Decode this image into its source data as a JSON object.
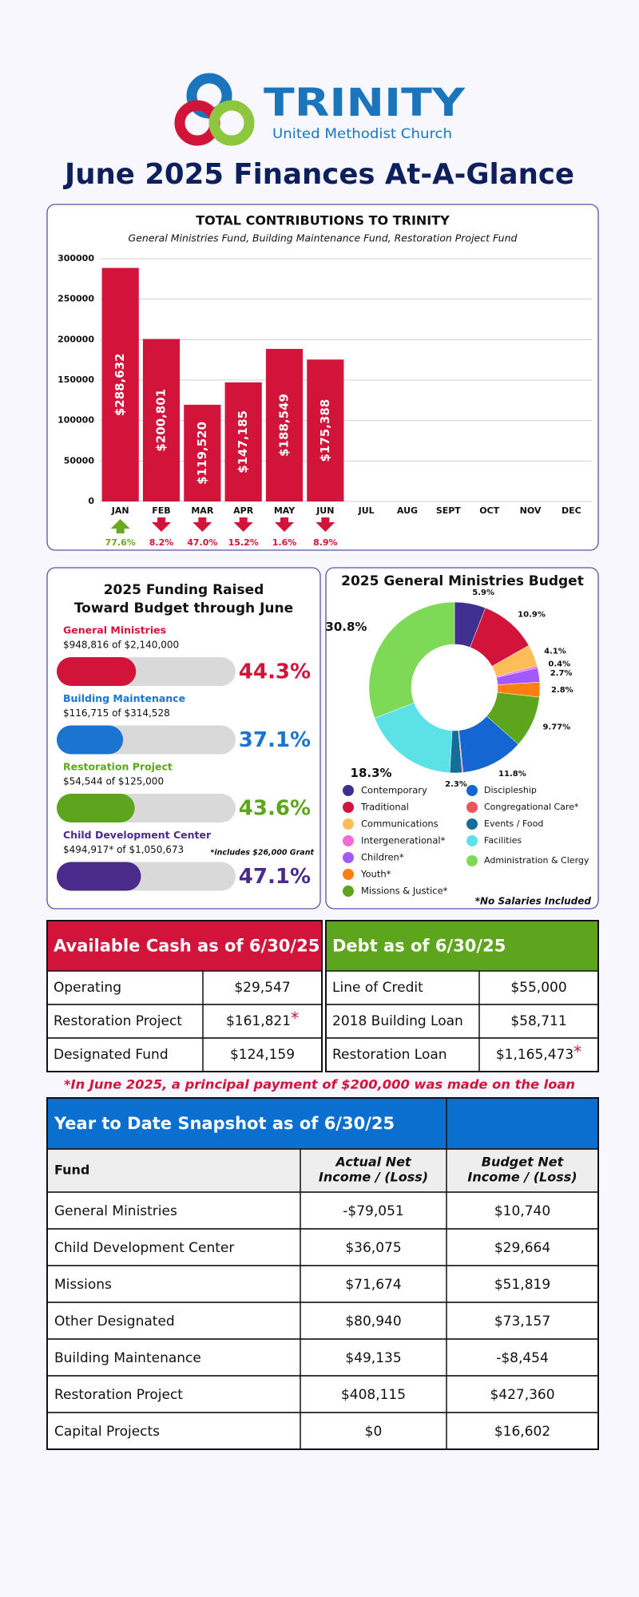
{
  "header": {
    "logo_name": "TRINITY",
    "logo_subtitle": "United Methodist Church",
    "title": "June 2025 Finances At-A-Glance"
  },
  "chart_data": [
    {
      "type": "bar",
      "title": "TOTAL CONTRIBUTIONS TO TRINITY",
      "subtitle": "General Ministries Fund, Building Maintenance Fund, Restoration Project Fund",
      "categories": [
        "JAN",
        "FEB",
        "MAR",
        "APR",
        "MAY",
        "JUN",
        "JUL",
        "AUG",
        "SEPT",
        "OCT",
        "NOV",
        "DEC"
      ],
      "values": [
        288632,
        200801,
        119520,
        147185,
        188549,
        175388,
        null,
        null,
        null,
        null,
        null,
        null
      ],
      "value_labels": [
        "$288,632",
        "$200,801",
        "$119,520",
        "$147,185",
        "$188,549",
        "$175,388",
        null,
        null,
        null,
        null,
        null,
        null
      ],
      "color": "#d2143a",
      "ylim": [
        0,
        300000
      ],
      "yticks": [
        0,
        50000,
        100000,
        150000,
        200000,
        250000,
        300000
      ],
      "grid": true,
      "changes": [
        77.6,
        -8.2,
        -47.0,
        -15.2,
        -1.6,
        -8.9,
        null,
        null,
        null,
        null,
        null,
        null
      ],
      "change_labels": [
        "77.6%",
        "8.2%",
        "47.0%",
        "15.2%",
        "1.6%",
        "8.9%",
        null,
        null,
        null,
        null,
        null,
        null
      ],
      "up_color": "#6aaa1e",
      "down_color": "#d2143a"
    },
    {
      "type": "pie",
      "donut": true,
      "title": "2025 General Ministries Budget",
      "categories": [
        "Contemporary",
        "Traditional",
        "Communications",
        "Intergenerational*",
        "Children*",
        "Youth*",
        "Missions & Justice*",
        "Discipleship",
        "Congregational Care*",
        "Events / Food",
        "Facilities",
        "Administration & Clergy"
      ],
      "values": [
        5.9,
        10.9,
        4.1,
        0.4,
        2.7,
        2.8,
        9.77,
        11.8,
        0.2,
        2.3,
        18.3,
        30.8
      ],
      "value_labels": [
        "5.9%",
        "10.9%",
        "4.1%",
        "0.4%",
        "2.7%",
        "2.8%",
        "9.77%",
        "11.8%",
        null,
        "2.3%",
        "18.3%",
        "30.8%"
      ],
      "colors": [
        "#3f2f8f",
        "#d2143a",
        "#ffbd59",
        "#f06bd5",
        "#a259ff",
        "#ff7f11",
        "#5ca51c",
        "#1466d2",
        "#f0545b",
        "#156e99",
        "#5ce1e6",
        "#7ed957"
      ],
      "note": "*No Salaries Included"
    }
  ],
  "funding": {
    "title": [
      "2025 Funding Raised",
      "Toward Budget through June"
    ],
    "items": [
      {
        "name": "General Ministries",
        "detail": "$948,816 of $2,140,000",
        "percent": {
          "value": 44.3,
          "label": "44.3%"
        },
        "color": "#d2143a"
      },
      {
        "name": "Building Maintenance",
        "detail": "$116,715 of $314,528",
        "percent": {
          "value": 37.1,
          "label": "37.1%"
        },
        "color": "#1b75d0"
      },
      {
        "name": "Restoration Project",
        "detail": "$54,544 of $125,000",
        "percent": {
          "value": 43.6,
          "label": "43.6%"
        },
        "color": "#5ca51c"
      },
      {
        "name": "Child Development Center",
        "detail": "$494,917* of $1,050,673",
        "percent": {
          "value": 47.1,
          "label": "47.1%"
        },
        "color": "#4a2a8a"
      }
    ],
    "footnote": "*includes $26,000 Grant"
  },
  "cash": {
    "title": "Available Cash as of 6/30/25",
    "color": "#d2143a",
    "rows": [
      [
        "Operating",
        "$29,547"
      ],
      [
        "Restoration Project",
        "$161,821",
        "*"
      ],
      [
        "Designated Fund",
        "$124,159"
      ]
    ]
  },
  "debt": {
    "title": "Debt as of 6/30/25",
    "color": "#5ca51c",
    "rows": [
      [
        "Line of Credit",
        "$55,000"
      ],
      [
        "2018 Building Loan",
        "$58,711"
      ],
      [
        "Restoration Loan",
        "$1,165,473",
        "*"
      ]
    ]
  },
  "note": "*In June 2025, a principal payment of $200,000 was made on the loan",
  "snapshot": {
    "title": "Year to Date Snapshot as of 6/30/25",
    "color": "#0b6fcf",
    "columns": [
      [
        "Fund"
      ],
      [
        "Actual Net",
        "Income / (Loss)"
      ],
      [
        "Budget Net",
        "Income / (Loss)"
      ]
    ],
    "rows": [
      [
        "General Ministries",
        "-$79,051",
        "$10,740"
      ],
      [
        "Child Development Center",
        "$36,075",
        "$29,664"
      ],
      [
        "Missions",
        "$71,674",
        "$51,819"
      ],
      [
        "Other Designated",
        "$80,940",
        "$73,157"
      ],
      [
        "Building Maintenance",
        "$49,135",
        "-$8,454"
      ],
      [
        "Restoration Project",
        "$408,115",
        "$427,360"
      ],
      [
        "Capital Projects",
        "$0",
        "$16,602"
      ]
    ]
  }
}
